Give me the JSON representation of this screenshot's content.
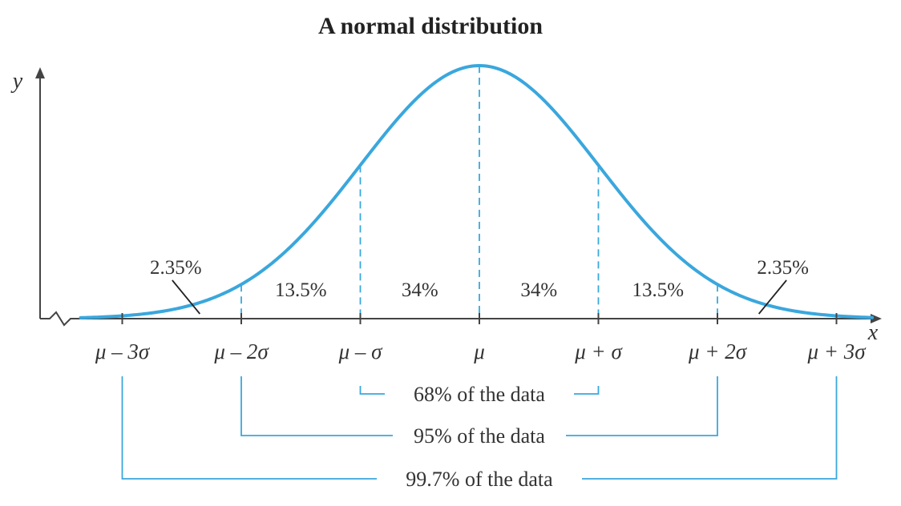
{
  "chart_data": {
    "type": "line",
    "title": "A normal distribution",
    "xlabel": "x",
    "ylabel": "y",
    "xlim": [
      -3.35,
      3.3
    ],
    "ylim": [
      0,
      1
    ],
    "curve": "normal",
    "mean_label": "μ",
    "ticks": [
      {
        "x": -3,
        "label": "μ – 3σ"
      },
      {
        "x": -2,
        "label": "μ – 2σ"
      },
      {
        "x": -1,
        "label": "μ – σ"
      },
      {
        "x": 0,
        "label": "μ"
      },
      {
        "x": 1,
        "label": "μ + σ"
      },
      {
        "x": 2,
        "label": "μ + 2σ"
      },
      {
        "x": 3,
        "label": "μ + 3σ"
      }
    ],
    "regions": [
      {
        "from": -3,
        "to": -2,
        "percent": 2.35,
        "label": "2.35%"
      },
      {
        "from": -2,
        "to": -1,
        "percent": 13.5,
        "label": "13.5%"
      },
      {
        "from": -1,
        "to": 0,
        "percent": 34,
        "label": "34%"
      },
      {
        "from": 0,
        "to": 1,
        "percent": 34,
        "label": "34%"
      },
      {
        "from": 1,
        "to": 2,
        "percent": 13.5,
        "label": "13.5%"
      },
      {
        "from": 2,
        "to": 3,
        "percent": 2.35,
        "label": "2.35%"
      }
    ],
    "ranges": [
      {
        "from": -1,
        "to": 1,
        "label": "68% of the data"
      },
      {
        "from": -2,
        "to": 2,
        "label": "95% of the data"
      },
      {
        "from": -3,
        "to": 3,
        "label": "99.7% of the data"
      }
    ],
    "colors": {
      "curve": "#3aa7dd",
      "bracket": "#3aa7dd",
      "axis": "#444444",
      "text": "#333333"
    }
  }
}
